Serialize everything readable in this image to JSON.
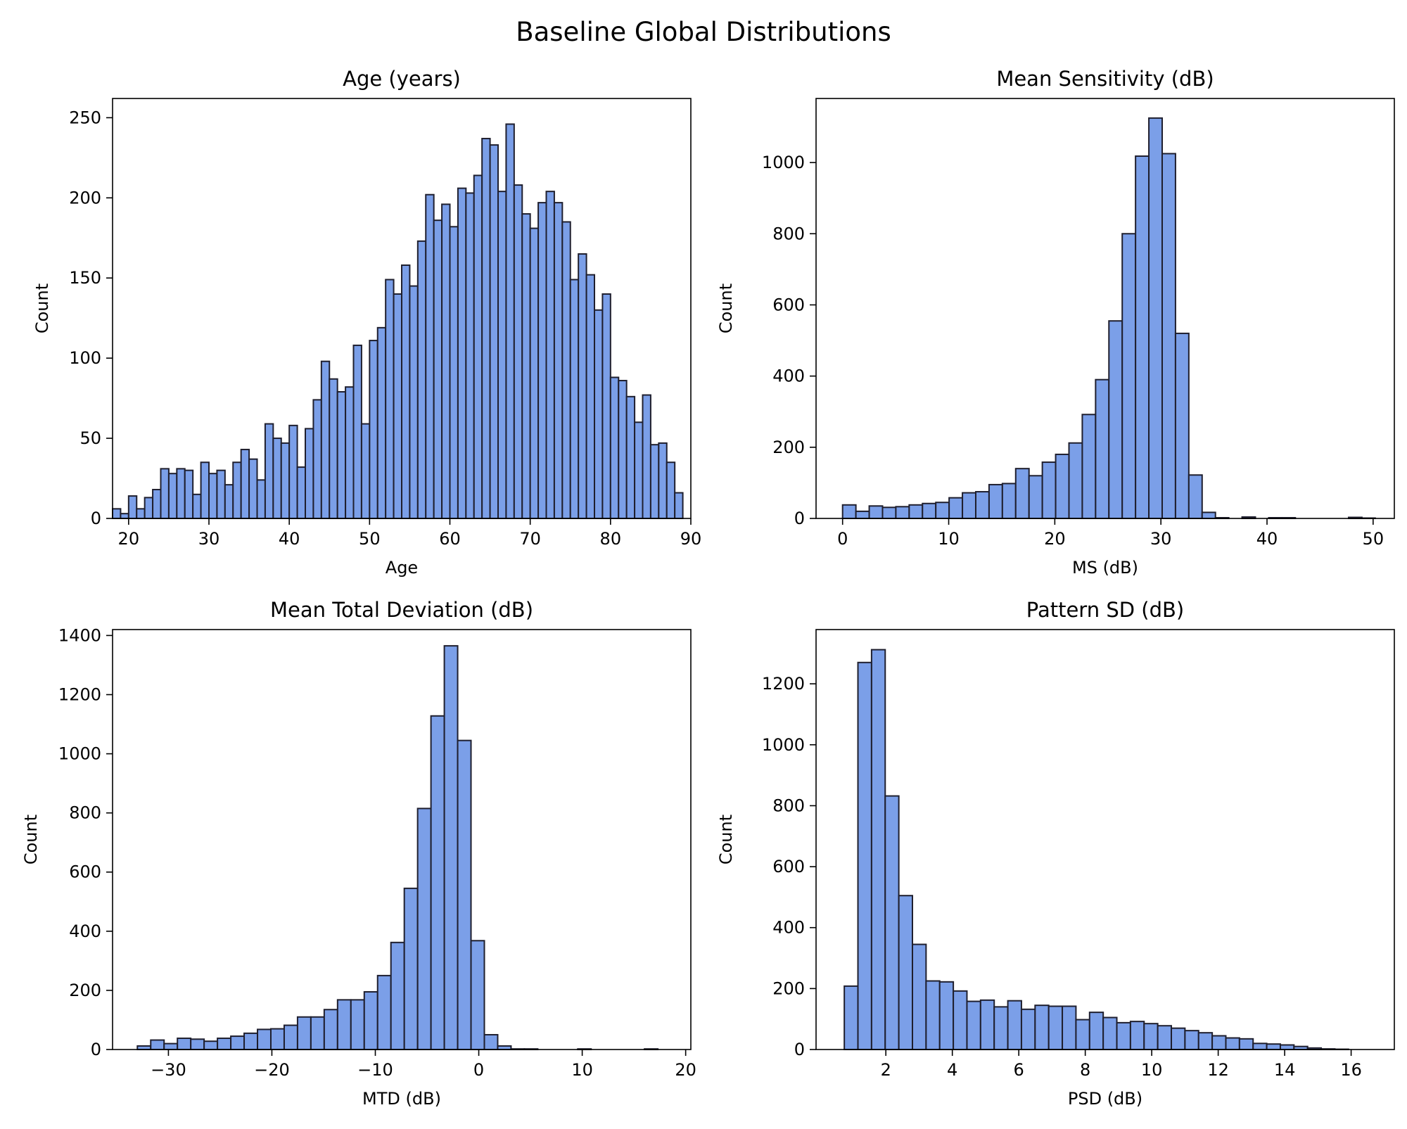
{
  "figure": {
    "suptitle": "Baseline Global Distributions",
    "bar_fill": "#7b9fe8",
    "bar_edge": "#1f1f2e"
  },
  "chart_data": [
    {
      "type": "bar",
      "title": "Age (years)",
      "xlabel": "Age",
      "ylabel": "Count",
      "xlim": [
        18,
        90
      ],
      "ylim": [
        0,
        262
      ],
      "xticks": [
        20,
        30,
        40,
        50,
        60,
        70,
        80,
        90
      ],
      "yticks": [
        0,
        50,
        100,
        150,
        200,
        250
      ],
      "grid": false,
      "bin_start": 18,
      "bin_width": 1,
      "values": [
        6,
        3,
        14,
        6,
        13,
        18,
        31,
        28,
        31,
        30,
        15,
        35,
        28,
        30,
        21,
        35,
        43,
        37,
        24,
        59,
        50,
        47,
        58,
        32,
        56,
        74,
        98,
        87,
        79,
        82,
        108,
        59,
        111,
        119,
        149,
        140,
        158,
        145,
        173,
        202,
        186,
        196,
        182,
        206,
        203,
        214,
        237,
        233,
        204,
        246,
        208,
        190,
        181,
        197,
        204,
        197,
        185,
        149,
        165,
        152,
        130,
        140,
        88,
        86,
        76,
        60,
        77,
        46,
        47,
        35,
        16
      ]
    },
    {
      "type": "bar",
      "title": "Mean Sensitivity (dB)",
      "xlabel": "MS (dB)",
      "ylabel": "Count",
      "xlim": [
        -2.5,
        52
      ],
      "ylim": [
        0,
        1180
      ],
      "xticks": [
        0,
        10,
        20,
        30,
        40,
        50
      ],
      "yticks": [
        0,
        200,
        400,
        600,
        800,
        1000
      ],
      "grid": false,
      "bin_start": 0,
      "bin_width": 1.255,
      "values": [
        38,
        20,
        35,
        31,
        33,
        38,
        42,
        45,
        58,
        72,
        75,
        95,
        98,
        140,
        120,
        158,
        180,
        212,
        292,
        390,
        555,
        800,
        1018,
        1125,
        1025,
        520,
        122,
        17,
        2,
        0,
        4,
        0,
        2,
        2,
        0,
        0,
        0,
        0,
        3,
        1
      ]
    },
    {
      "type": "bar",
      "title": "Mean Total Deviation (dB)",
      "xlabel": "MTD (dB)",
      "ylabel": "Count",
      "xlim": [
        -35.4,
        20.5
      ],
      "ylim": [
        0,
        1420
      ],
      "xticks": [
        -30,
        -20,
        -10,
        0,
        10,
        20
      ],
      "yticks": [
        0,
        200,
        400,
        600,
        800,
        1000,
        1200,
        1400
      ],
      "grid": false,
      "bin_start": -33,
      "bin_width": 1.29,
      "values": [
        12,
        32,
        20,
        38,
        35,
        28,
        38,
        45,
        55,
        68,
        70,
        82,
        110,
        110,
        135,
        168,
        168,
        195,
        250,
        362,
        545,
        815,
        1128,
        1365,
        1045,
        368,
        50,
        12,
        2,
        2,
        0,
        0,
        0,
        2,
        0,
        0,
        0,
        0,
        2,
        0
      ]
    },
    {
      "type": "bar",
      "title": "Pattern SD (dB)",
      "xlabel": "PSD (dB)",
      "ylabel": "Count",
      "xlim": [
        -0.1,
        17.3
      ],
      "ylim": [
        0,
        1378
      ],
      "xticks": [
        2,
        4,
        6,
        8,
        10,
        12,
        14,
        16
      ],
      "yticks": [
        0,
        200,
        400,
        600,
        800,
        1000,
        1200
      ],
      "grid": false,
      "bin_start": 0.75,
      "bin_width": 0.41,
      "values": [
        208,
        1270,
        1312,
        832,
        505,
        345,
        225,
        222,
        192,
        158,
        162,
        140,
        160,
        132,
        145,
        142,
        142,
        98,
        122,
        105,
        88,
        92,
        85,
        78,
        70,
        62,
        55,
        45,
        38,
        35,
        20,
        18,
        15,
        10,
        5,
        2,
        1
      ]
    }
  ]
}
